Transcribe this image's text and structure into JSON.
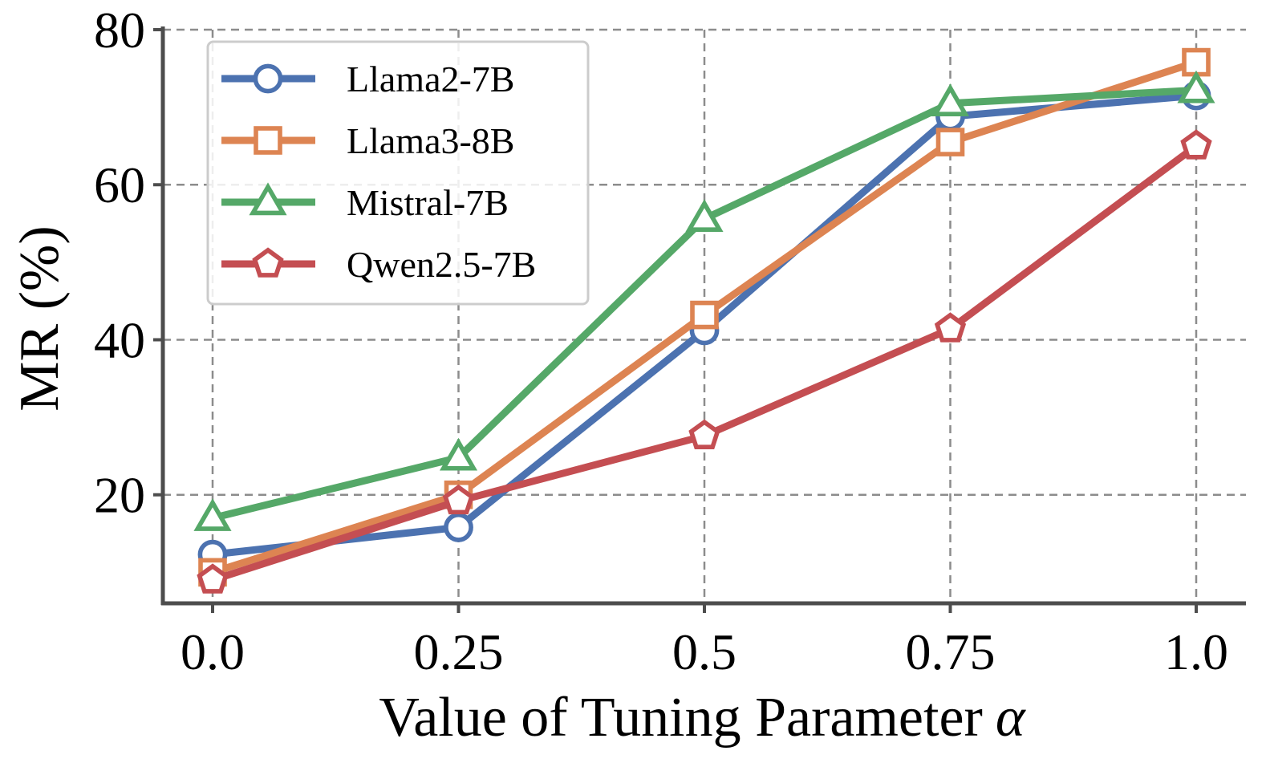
{
  "chart_data": {
    "type": "line",
    "xlabel": "Value of Tuning Parameter",
    "xlabel_symbol": "α",
    "ylabel": "MR (%)",
    "categories": [
      "0.0",
      "0.25",
      "0.5",
      "0.75",
      "1.0"
    ],
    "x": [
      0.0,
      0.25,
      0.5,
      0.75,
      1.0
    ],
    "ylim": [
      6,
      80
    ],
    "yticks": [
      20,
      40,
      60,
      80
    ],
    "grid": true,
    "legend_position": "top-left",
    "series": [
      {
        "name": "Llama2-7B",
        "color": "#4c72b0",
        "marker": "circle",
        "values": [
          12.3,
          15.8,
          41.2,
          68.8,
          71.5
        ]
      },
      {
        "name": "Llama3-8B",
        "color": "#dd8452",
        "marker": "square",
        "values": [
          10.0,
          20.0,
          43.2,
          65.5,
          75.8
        ]
      },
      {
        "name": "Mistral-7B",
        "color": "#55a868",
        "marker": "triangle",
        "values": [
          17.0,
          24.8,
          55.6,
          70.5,
          72.2
        ]
      },
      {
        "name": "Qwen2.5-7B",
        "color": "#c44e52",
        "marker": "pentagon",
        "values": [
          9.0,
          19.2,
          27.6,
          41.4,
          65.0
        ]
      }
    ]
  }
}
